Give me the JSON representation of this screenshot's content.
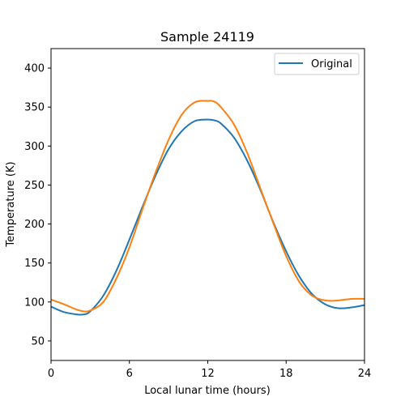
{
  "chart_data": {
    "type": "line",
    "title": "Sample 24119",
    "xlabel": "Local lunar time (hours)",
    "ylabel": "Temperature (K)",
    "xlim": [
      0,
      24
    ],
    "ylim": [
      25,
      425
    ],
    "xticks": [
      0,
      6,
      12,
      18,
      24
    ],
    "yticks": [
      50,
      100,
      150,
      200,
      250,
      300,
      350,
      400
    ],
    "grid": false,
    "legend_position": "upper right",
    "legend": [
      "Original"
    ],
    "x": [
      0,
      1,
      2,
      2.5,
      3,
      4,
      5,
      6,
      7,
      8,
      9,
      10,
      11,
      12,
      12.5,
      13,
      14,
      15,
      16,
      17,
      18,
      19,
      20,
      21,
      22,
      23,
      24
    ],
    "series": [
      {
        "name": "Original",
        "color": "#1f77b4",
        "values": [
          94,
          87,
          84,
          84,
          88,
          108,
          140,
          180,
          222,
          262,
          296,
          319,
          332,
          334,
          333,
          329,
          311,
          282,
          245,
          203,
          165,
          133,
          110,
          97,
          92,
          93,
          96
        ]
      },
      {
        "color": "#ff7f0e",
        "values": [
          103,
          97,
          90,
          88,
          89,
          100,
          130,
          170,
          219,
          266,
          308,
          340,
          356,
          358,
          357,
          350,
          328,
          292,
          247,
          202,
          159,
          126,
          108,
          102,
          102,
          104,
          104
        ]
      }
    ]
  }
}
